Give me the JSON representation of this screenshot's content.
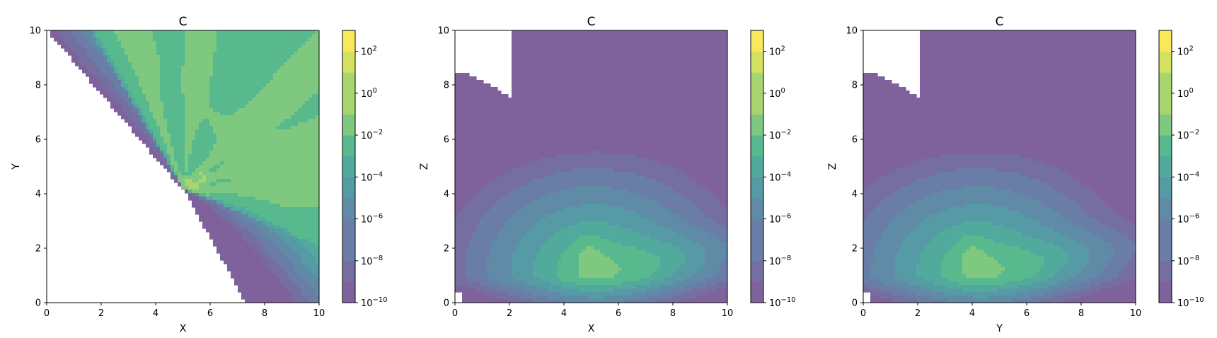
{
  "chart_data": [
    {
      "type": "contour",
      "title": "C",
      "xlabel": "X",
      "ylabel": "Y",
      "xlim": [
        0,
        10
      ],
      "ylim": [
        0,
        10
      ],
      "x_ticks": [
        "0",
        "2",
        "4",
        "6",
        "8",
        "10"
      ],
      "y_ticks": [
        "0",
        "2",
        "4",
        "6",
        "8",
        "10"
      ],
      "colorbar": {
        "scale": "log",
        "range": [
          1e-10,
          1000
        ],
        "tick_exponents": [
          "-10",
          "-8",
          "-6",
          "-4",
          "-2",
          "0",
          "2"
        ]
      },
      "peak_region": {
        "x": 5.3,
        "y": 4.3
      },
      "peak_level": 100,
      "masked_region": "lower-left (blank where values are below 1e-10)"
    },
    {
      "type": "contour",
      "title": "C",
      "xlabel": "X",
      "ylabel": "Z",
      "xlim": [
        0,
        10
      ],
      "ylim": [
        0,
        10
      ],
      "x_ticks": [
        "0",
        "2",
        "4",
        "6",
        "8",
        "10"
      ],
      "y_ticks": [
        "0",
        "2",
        "4",
        "6",
        "8",
        "10"
      ],
      "colorbar": {
        "scale": "log",
        "range": [
          1e-10,
          1000
        ],
        "tick_exponents": [
          "-10",
          "-8",
          "-6",
          "-4",
          "-2",
          "0",
          "2"
        ]
      },
      "peak_region": {
        "x": 5.1,
        "y": 1.2
      },
      "peak_level": 10,
      "masked_region": "top-left corner"
    },
    {
      "type": "contour",
      "title": "C",
      "xlabel": "Y",
      "ylabel": "Z",
      "xlim": [
        0,
        10
      ],
      "ylim": [
        0,
        10
      ],
      "x_ticks": [
        "0",
        "2",
        "4",
        "6",
        "8",
        "10"
      ],
      "y_ticks": [
        "0",
        "2",
        "4",
        "6",
        "8",
        "10"
      ],
      "colorbar": {
        "scale": "log",
        "range": [
          1e-10,
          1000
        ],
        "tick_exponents": [
          "-10",
          "-8",
          "-6",
          "-4",
          "-2",
          "0",
          "2"
        ]
      },
      "peak_region": {
        "x": 4.2,
        "y": 1.2
      },
      "peak_level": 10,
      "masked_region": "top-left corner"
    }
  ],
  "colormap": [
    "#7f619c",
    "#746fa0",
    "#6a7da6",
    "#5f8ba6",
    "#559aa4",
    "#51aa9c",
    "#58b98f",
    "#7ec87f",
    "#a8d56d",
    "#d2e260",
    "#f8e85a"
  ]
}
